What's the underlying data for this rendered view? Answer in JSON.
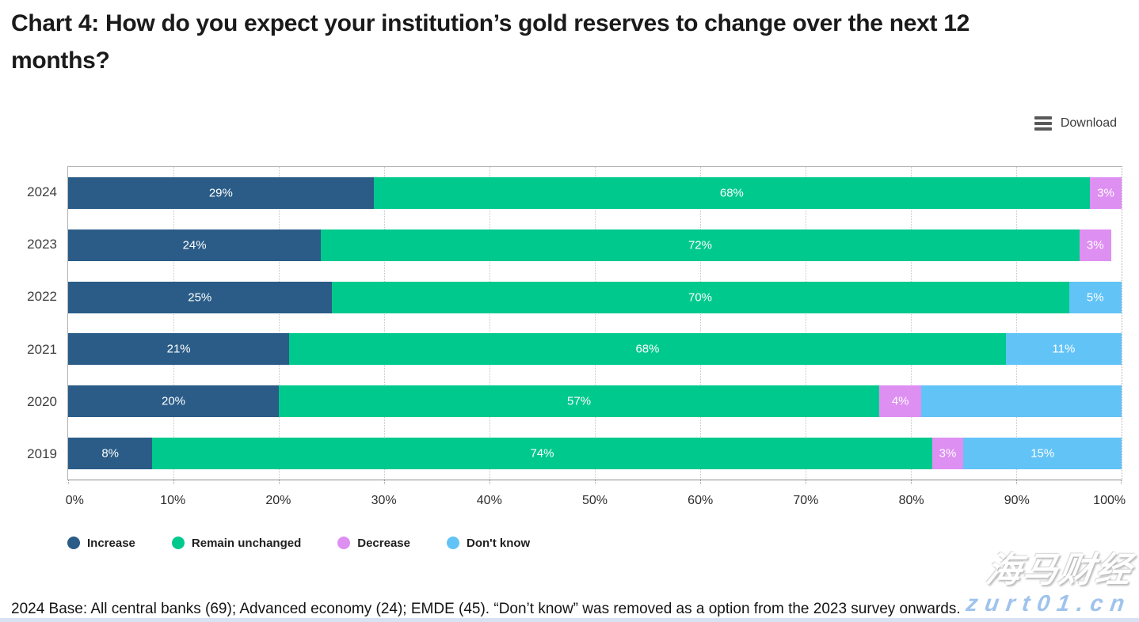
{
  "title": "Chart 4: How do you expect your institution’s gold reserves to change over the next 12 months?",
  "toolbar": {
    "download_label": "Download"
  },
  "chart_data": {
    "type": "bar",
    "orientation": "horizontal",
    "stacked": true,
    "categories": [
      "2024",
      "2023",
      "2022",
      "2021",
      "2020",
      "2019"
    ],
    "series": [
      {
        "name": "Increase",
        "color": "#2A5C87",
        "values": [
          29,
          24,
          25,
          21,
          20,
          8
        ],
        "labels": [
          "29%",
          "24%",
          "25%",
          "21%",
          "20%",
          "8%"
        ]
      },
      {
        "name": "Remain unchanged",
        "color": "#00C98D",
        "values": [
          68,
          72,
          70,
          68,
          57,
          74
        ],
        "labels": [
          "68%",
          "72%",
          "70%",
          "68%",
          "57%",
          "74%"
        ]
      },
      {
        "name": "Decrease",
        "color": "#DE8FF2",
        "values": [
          3,
          3,
          0,
          0,
          4,
          3
        ],
        "labels": [
          "3%",
          "3%",
          "",
          "",
          "4%",
          "3%"
        ]
      },
      {
        "name": "Don't know",
        "color": "#62C3F7",
        "values": [
          0,
          0,
          5,
          11,
          19,
          15
        ],
        "labels": [
          "",
          "",
          "5%",
          "11%",
          "",
          "15%"
        ]
      }
    ],
    "x_ticks": [
      "0%",
      "10%",
      "20%",
      "30%",
      "40%",
      "50%",
      "60%",
      "70%",
      "80%",
      "90%",
      "100%"
    ],
    "xlim": [
      0,
      100
    ],
    "grid": "vertical-dotted",
    "legend_position": "bottom",
    "legend": [
      "Increase",
      "Remain unchanged",
      "Decrease",
      "Don't know"
    ]
  },
  "footer_note": "2024 Base: All central banks (69); Advanced economy (24); EMDE (45). “Don’t know” was removed as a option from the 2023 survey onwards.",
  "watermark": {
    "brand": "海马财经",
    "domain": "zurt01.cn"
  }
}
